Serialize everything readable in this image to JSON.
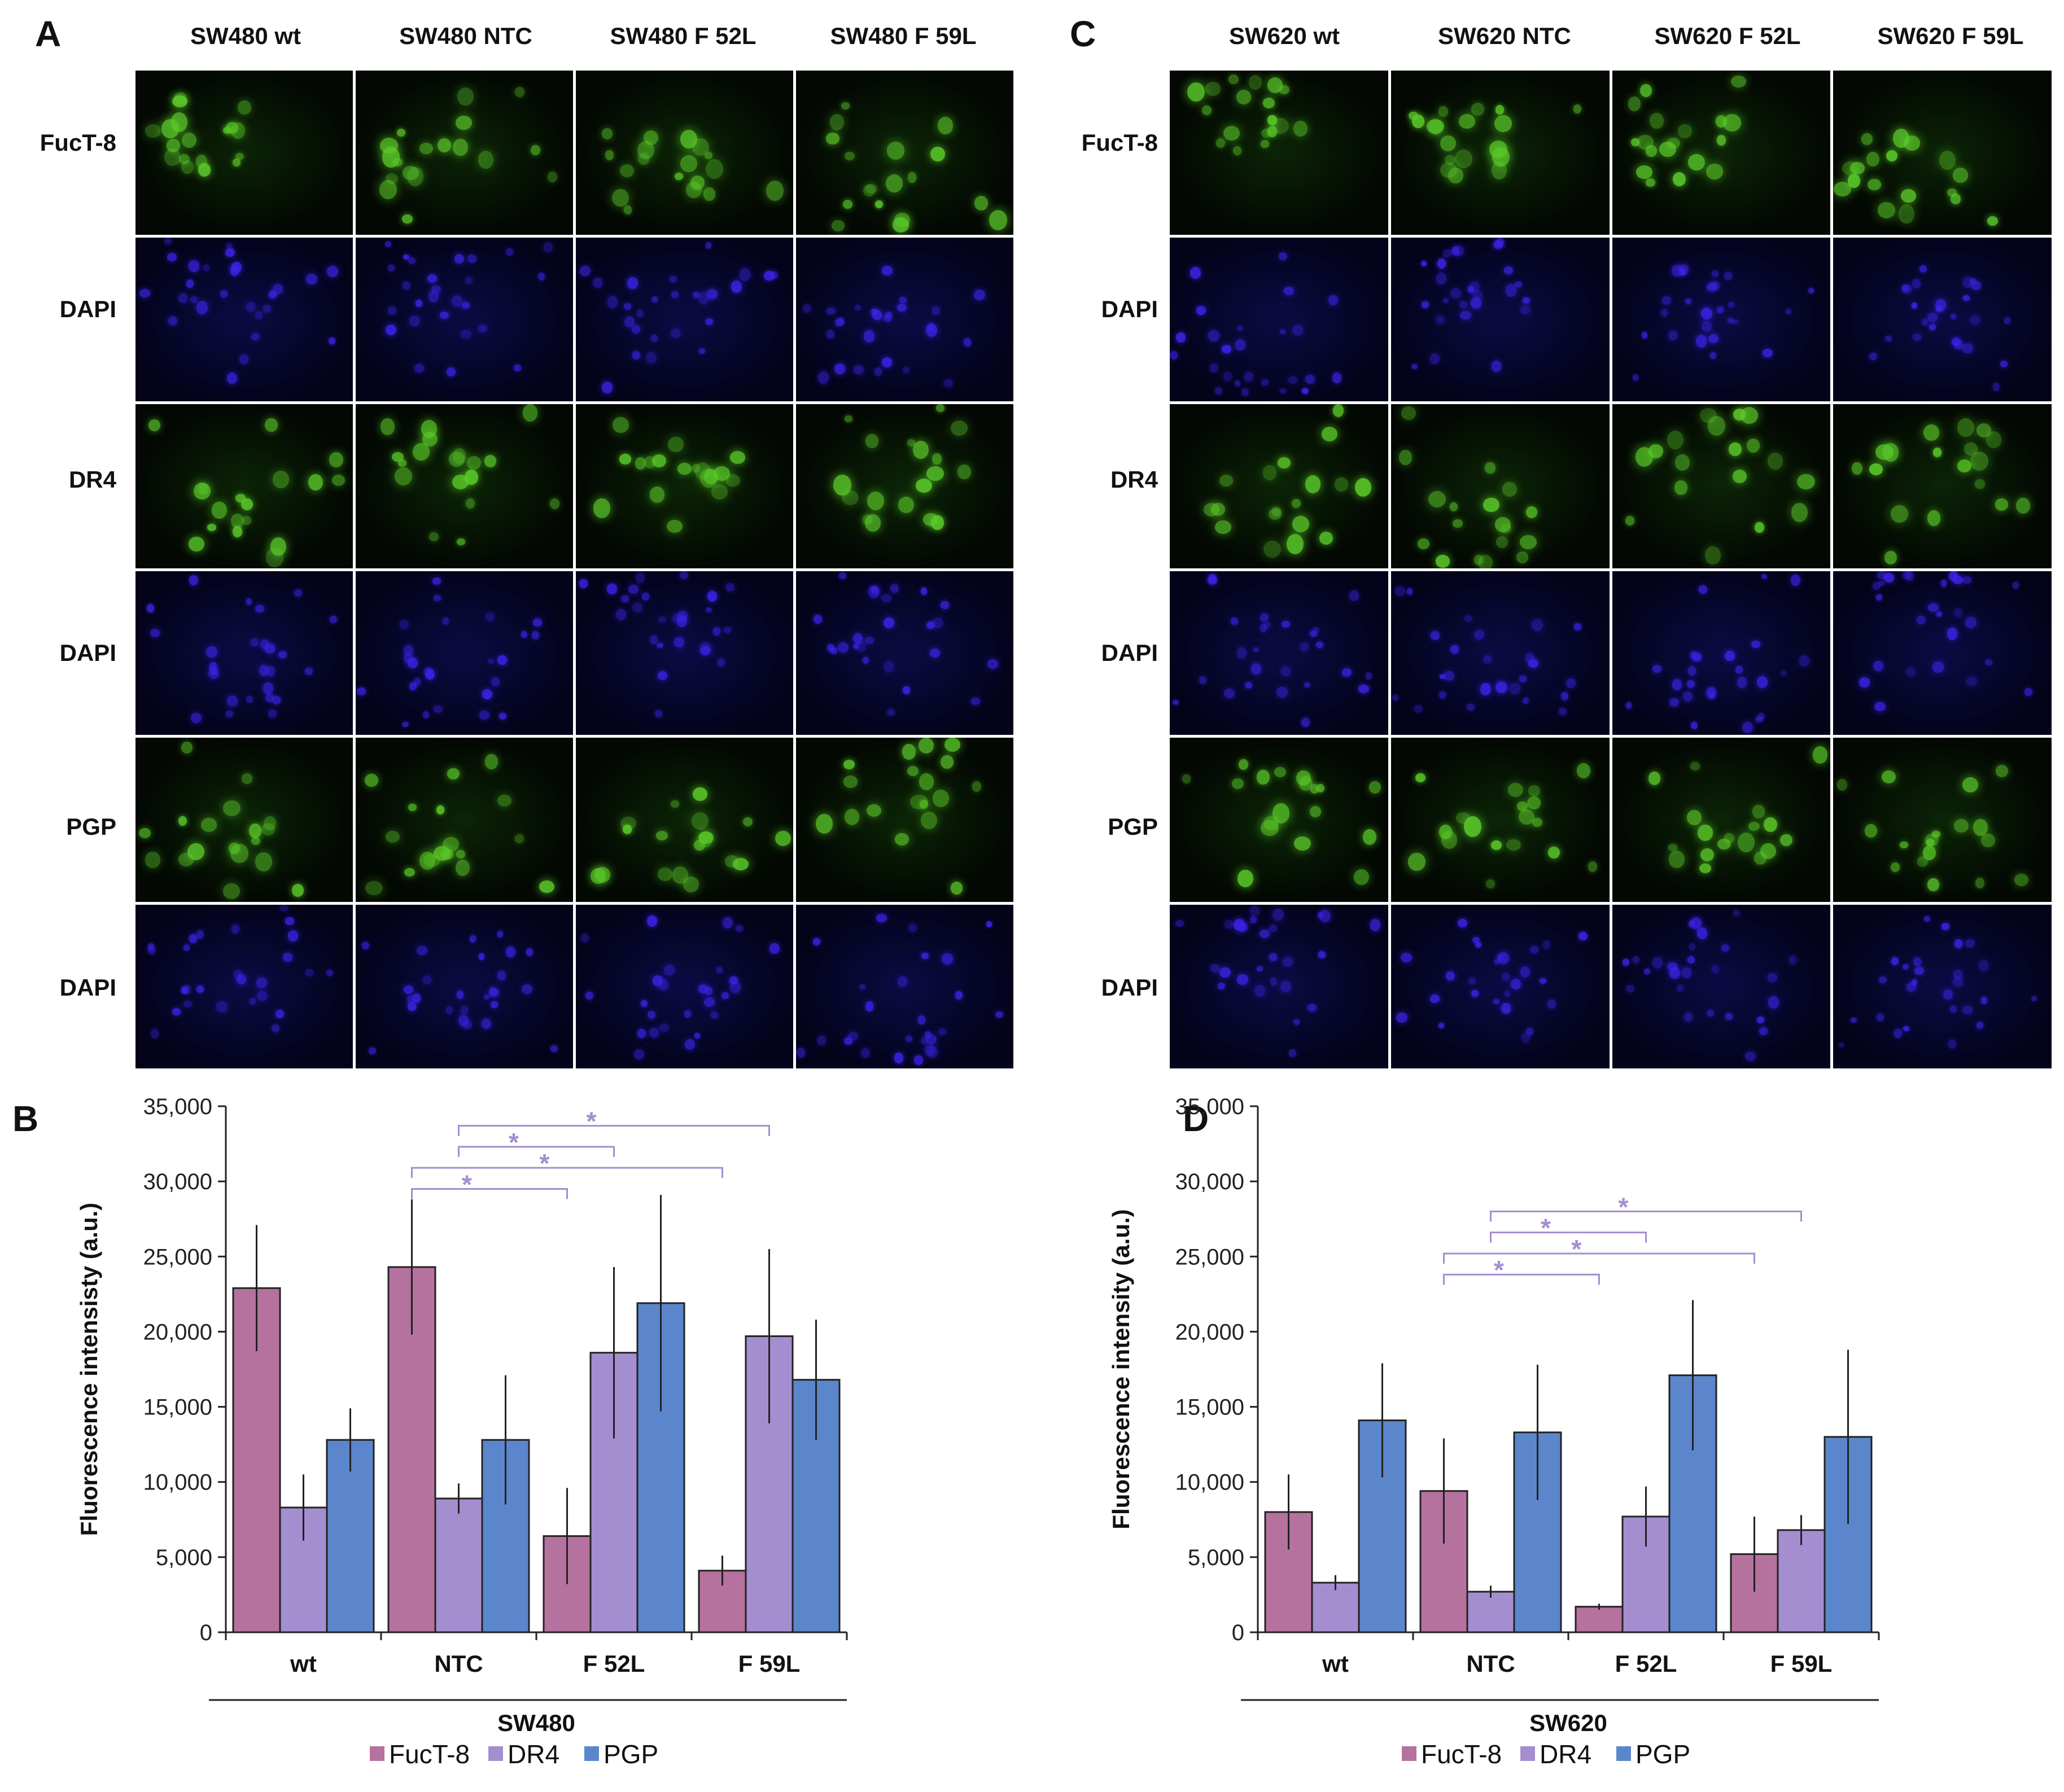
{
  "colors": {
    "fuct8": "#b5729f",
    "dr4": "#a48ed0",
    "pgp": "#5b86cc",
    "bracket": "#a48ed0",
    "green_stain": "#5ccc2a",
    "blue_stain": "#3c23e6"
  },
  "panels": {
    "A": {
      "letter": "A",
      "columns": [
        "SW480 wt",
        "SW480 NTC",
        "SW480 F 52L",
        "SW480 F 59L"
      ],
      "rows": [
        "FucT-8",
        "DAPI",
        "DR4",
        "DAPI",
        "PGP",
        "DAPI"
      ]
    },
    "C": {
      "letter": "C",
      "columns": [
        "SW620 wt",
        "SW620 NTC",
        "SW620 F 52L",
        "SW620 F 59L"
      ],
      "rows": [
        "FucT-8",
        "DAPI",
        "DR4",
        "DAPI",
        "PGP",
        "DAPI"
      ]
    }
  },
  "chart_data": [
    {
      "panel_letter": "B",
      "type": "bar",
      "categories": [
        "wt",
        "NTC",
        "F 52L",
        "F 59L"
      ],
      "group_label": "SW480",
      "ylabel": "Fluorescence intensisty (a.u.)",
      "ylim": [
        0,
        35000
      ],
      "yticks": [
        0,
        5000,
        10000,
        15000,
        20000,
        25000,
        30000,
        35000
      ],
      "ytick_labels": [
        "0",
        "5,000",
        "10,000",
        "15,000",
        "20,000",
        "25,000",
        "30,000",
        "35,000"
      ],
      "grid": false,
      "legend_position": "bottom",
      "series": [
        {
          "name": "FucT-8",
          "values": [
            22900,
            24300,
            6400,
            4100
          ],
          "errors": [
            4200,
            4500,
            3200,
            1000
          ]
        },
        {
          "name": "DR4",
          "values": [
            8300,
            8900,
            18600,
            19700
          ],
          "errors": [
            2200,
            1000,
            5700,
            5800
          ]
        },
        {
          "name": "PGP",
          "values": [
            12800,
            12800,
            21900,
            16800
          ],
          "errors": [
            2100,
            4300,
            7200,
            4000
          ]
        }
      ],
      "significance": [
        {
          "from": [
            1,
            0
          ],
          "to": [
            2,
            0
          ],
          "y": 29500,
          "label": "*"
        },
        {
          "from": [
            1,
            0
          ],
          "to": [
            3,
            0
          ],
          "y": 30900,
          "label": "*"
        },
        {
          "from": [
            1,
            1
          ],
          "to": [
            2,
            1
          ],
          "y": 32300,
          "label": "*"
        },
        {
          "from": [
            1,
            1
          ],
          "to": [
            3,
            1
          ],
          "y": 33700,
          "label": "*"
        }
      ]
    },
    {
      "panel_letter": "D",
      "type": "bar",
      "categories": [
        "wt",
        "NTC",
        "F 52L",
        "F 59L"
      ],
      "group_label": "SW620",
      "ylabel": "Fluorescence intensity (a.u.)",
      "ylim": [
        0,
        35000
      ],
      "yticks": [
        0,
        5000,
        10000,
        15000,
        20000,
        25000,
        30000,
        35000
      ],
      "ytick_labels": [
        "0",
        "5,000",
        "10,000",
        "15,000",
        "20,000",
        "25,000",
        "30,000",
        "35,000"
      ],
      "grid": false,
      "legend_position": "bottom",
      "series": [
        {
          "name": "FucT-8",
          "values": [
            8000,
            9400,
            1700,
            5200
          ],
          "errors": [
            2500,
            3500,
            200,
            2500
          ]
        },
        {
          "name": "DR4",
          "values": [
            3300,
            2700,
            7700,
            6800
          ],
          "errors": [
            500,
            400,
            2000,
            1000
          ]
        },
        {
          "name": "PGP",
          "values": [
            14100,
            13300,
            17100,
            13000
          ],
          "errors": [
            3800,
            4500,
            5000,
            5800
          ]
        }
      ],
      "significance": [
        {
          "from": [
            1,
            0
          ],
          "to": [
            2,
            0
          ],
          "y": 23800,
          "label": "*"
        },
        {
          "from": [
            1,
            0
          ],
          "to": [
            3,
            0
          ],
          "y": 25200,
          "label": "*"
        },
        {
          "from": [
            1,
            1
          ],
          "to": [
            2,
            1
          ],
          "y": 26600,
          "label": "*"
        },
        {
          "from": [
            1,
            1
          ],
          "to": [
            3,
            1
          ],
          "y": 28000,
          "label": "*"
        }
      ]
    }
  ]
}
